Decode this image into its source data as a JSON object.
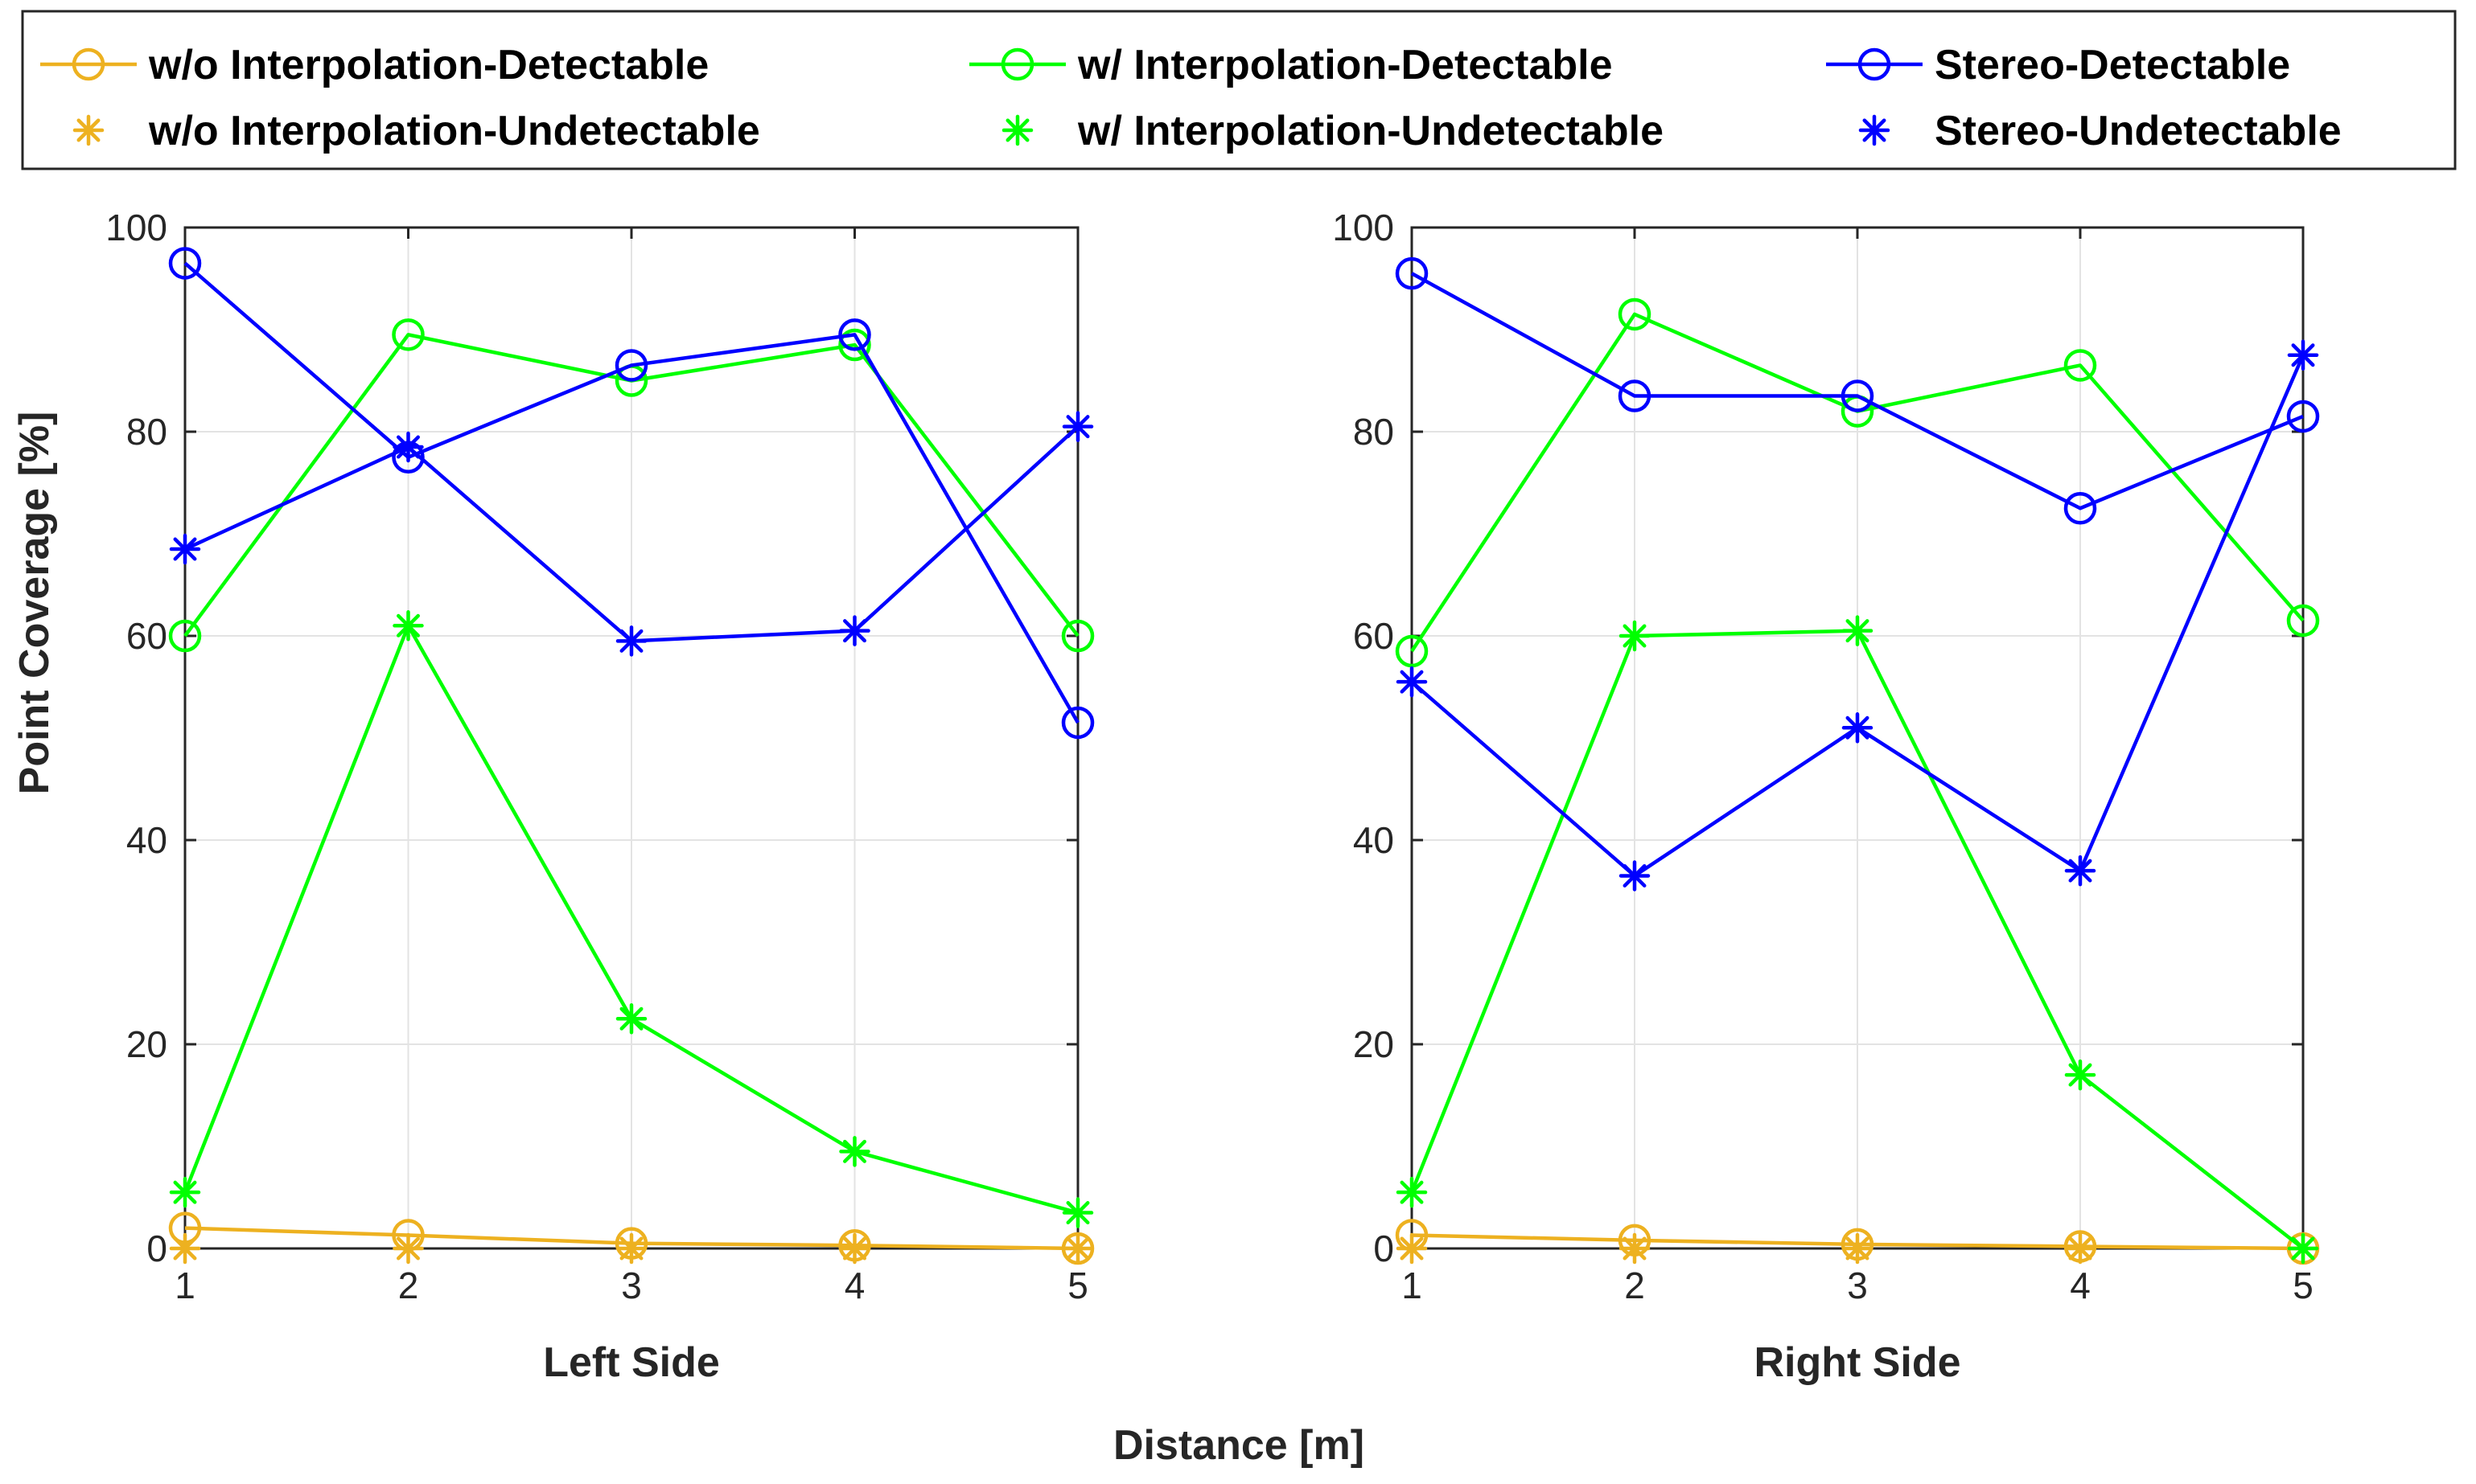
{
  "chart_data": {
    "type": "line",
    "legend": {
      "placement": "top",
      "entries": [
        {
          "label": "w/o Interpolation-Detectable",
          "color": "#EDB120",
          "marker": "circle"
        },
        {
          "label": "w/ Interpolation-Detectable",
          "color": "#00FF00",
          "marker": "circle"
        },
        {
          "label": "Stereo-Detectable",
          "color": "#0000FF",
          "marker": "circle"
        },
        {
          "label": "w/o Interpolation-Undetectable",
          "color": "#EDB120",
          "marker": "asterisk"
        },
        {
          "label": "w/ Interpolation-Undetectable",
          "color": "#00FF00",
          "marker": "asterisk"
        },
        {
          "label": "Stereo-Undetectable",
          "color": "#0000FF",
          "marker": "asterisk"
        }
      ]
    },
    "ylabel": "Point Coverage [%]",
    "xlabel": "Distance [m]",
    "ylim": [
      0,
      100
    ],
    "xlim": [
      1,
      5
    ],
    "yticks": [
      0,
      20,
      40,
      60,
      80,
      100
    ],
    "xticks": [
      1,
      2,
      3,
      4,
      5
    ],
    "grid": true,
    "panels": [
      {
        "title": "Left Side",
        "x": [
          1,
          2,
          3,
          4,
          5
        ],
        "series": [
          {
            "name": "w/o Interpolation-Detectable",
            "color": "#EDB120",
            "marker": "circle",
            "line": true,
            "values": [
              2.0,
              1.3,
              0.5,
              0.3,
              0.0
            ]
          },
          {
            "name": "w/o Interpolation-Undetectable",
            "color": "#EDB120",
            "marker": "asterisk",
            "line": false,
            "values": [
              0.0,
              0.0,
              0.0,
              0.0,
              0.0
            ]
          },
          {
            "name": "w/ Interpolation-Detectable",
            "color": "#00FF00",
            "marker": "circle",
            "line": true,
            "values": [
              60.0,
              89.5,
              85.0,
              88.5,
              60.0
            ]
          },
          {
            "name": "w/ Interpolation-Undetectable",
            "color": "#00FF00",
            "marker": "asterisk",
            "line": true,
            "values": [
              5.5,
              61.0,
              22.5,
              9.5,
              3.5
            ]
          },
          {
            "name": "Stereo-Detectable",
            "color": "#0000FF",
            "marker": "circle",
            "line": true,
            "values": [
              96.5,
              77.5,
              86.5,
              89.5,
              51.5
            ]
          },
          {
            "name": "Stereo-Undetectable",
            "color": "#0000FF",
            "marker": "asterisk",
            "line": true,
            "values": [
              68.5,
              78.5,
              59.5,
              60.5,
              80.5
            ]
          }
        ]
      },
      {
        "title": "Right Side",
        "x": [
          1,
          2,
          3,
          4,
          5
        ],
        "series": [
          {
            "name": "w/o Interpolation-Detectable",
            "color": "#EDB120",
            "marker": "circle",
            "line": true,
            "values": [
              1.3,
              0.8,
              0.4,
              0.2,
              0.0
            ]
          },
          {
            "name": "w/o Interpolation-Undetectable",
            "color": "#EDB120",
            "marker": "asterisk",
            "line": false,
            "values": [
              0.0,
              0.0,
              0.0,
              0.0,
              0.0
            ]
          },
          {
            "name": "w/ Interpolation-Detectable",
            "color": "#00FF00",
            "marker": "circle",
            "line": true,
            "values": [
              58.5,
              91.5,
              82.0,
              86.5,
              61.5
            ]
          },
          {
            "name": "w/ Interpolation-Undetectable",
            "color": "#00FF00",
            "marker": "asterisk",
            "line": true,
            "values": [
              5.5,
              60.0,
              60.5,
              17.0,
              0.0
            ]
          },
          {
            "name": "Stereo-Detectable",
            "color": "#0000FF",
            "marker": "circle",
            "line": true,
            "values": [
              95.5,
              83.5,
              83.5,
              72.5,
              81.5
            ]
          },
          {
            "name": "Stereo-Undetectable",
            "color": "#0000FF",
            "marker": "asterisk",
            "line": true,
            "values": [
              55.5,
              36.5,
              51.0,
              37.0,
              87.5
            ]
          }
        ]
      }
    ]
  }
}
